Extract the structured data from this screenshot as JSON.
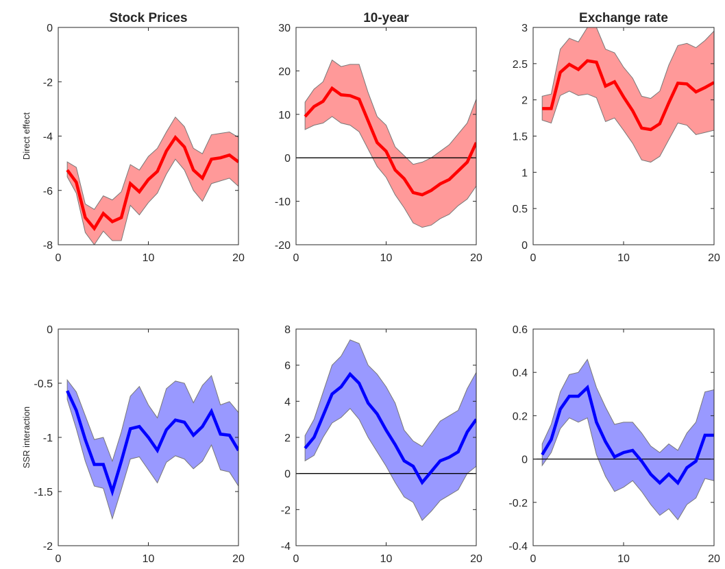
{
  "chart_data": [
    {
      "type": "line",
      "panel": "stock-direct",
      "title": "Stock Prices",
      "ylabel": "Direct effect",
      "xlabel": "",
      "xlim": [
        0,
        20
      ],
      "ylim": [
        -8,
        0
      ],
      "xticks": [
        0,
        10,
        20
      ],
      "yticks": [
        -8,
        -6,
        -4,
        -2,
        0
      ],
      "zero_line": false,
      "line_color": "#ff0000",
      "band_color": "#ff9999",
      "x": [
        1,
        2,
        3,
        4,
        5,
        6,
        7,
        8,
        9,
        10,
        11,
        12,
        13,
        14,
        15,
        16,
        17,
        18,
        19,
        20
      ],
      "median": [
        -5.25,
        -5.7,
        -7.0,
        -7.4,
        -6.85,
        -7.15,
        -7.0,
        -5.75,
        -6.05,
        -5.6,
        -5.3,
        -4.55,
        -4.05,
        -4.4,
        -5.25,
        -5.55,
        -4.85,
        -4.8,
        -4.7,
        -4.95
      ],
      "upper": [
        -4.95,
        -5.15,
        -6.5,
        -6.7,
        -6.2,
        -6.35,
        -6.05,
        -5.05,
        -5.25,
        -4.75,
        -4.45,
        -3.85,
        -3.3,
        -3.65,
        -4.45,
        -4.65,
        -3.95,
        -3.9,
        -3.85,
        -4.05
      ],
      "lower": [
        -5.5,
        -6.1,
        -7.55,
        -8.0,
        -7.5,
        -7.85,
        -7.85,
        -6.55,
        -6.9,
        -6.45,
        -6.1,
        -5.4,
        -4.85,
        -5.25,
        -6.0,
        -6.4,
        -5.75,
        -5.65,
        -5.55,
        -5.85
      ]
    },
    {
      "type": "line",
      "panel": "10y-direct",
      "title": "10-year",
      "ylabel": "",
      "xlabel": "",
      "xlim": [
        0,
        20
      ],
      "ylim": [
        -20,
        30
      ],
      "xticks": [
        0,
        10,
        20
      ],
      "yticks": [
        -20,
        -10,
        0,
        10,
        20,
        30
      ],
      "zero_line": true,
      "line_color": "#ff0000",
      "band_color": "#ff9999",
      "x": [
        1,
        2,
        3,
        4,
        5,
        6,
        7,
        8,
        9,
        10,
        11,
        12,
        13,
        14,
        15,
        16,
        17,
        18,
        19,
        20
      ],
      "median": [
        9.5,
        11.8,
        13.0,
        16.0,
        14.5,
        14.3,
        13.5,
        8.5,
        3.5,
        1.5,
        -2.8,
        -4.8,
        -8.0,
        -8.5,
        -7.5,
        -6.0,
        -5.0,
        -3.0,
        -1.0,
        3.5
      ],
      "upper": [
        12.8,
        15.8,
        17.5,
        22.5,
        21.0,
        21.5,
        21.5,
        15.0,
        9.5,
        7.5,
        2.5,
        0.5,
        -1.5,
        -1.0,
        0.0,
        1.5,
        3.0,
        5.5,
        8.0,
        13.5
      ],
      "lower": [
        6.5,
        7.5,
        8.0,
        9.5,
        8.0,
        7.5,
        6.0,
        2.0,
        -2.0,
        -4.5,
        -8.5,
        -11.5,
        -15.0,
        -16.0,
        -15.5,
        -14.0,
        -13.0,
        -11.0,
        -9.5,
        -6.5
      ]
    },
    {
      "type": "line",
      "panel": "fx-direct",
      "title": "Exchange rate",
      "ylabel": "",
      "xlabel": "",
      "xlim": [
        0,
        20
      ],
      "ylim": [
        0,
        3
      ],
      "xticks": [
        0,
        10,
        20
      ],
      "yticks": [
        0,
        0.5,
        1,
        1.5,
        2,
        2.5,
        3
      ],
      "zero_line": false,
      "line_color": "#ff0000",
      "band_color": "#ff9999",
      "x": [
        1,
        2,
        3,
        4,
        5,
        6,
        7,
        8,
        9,
        10,
        11,
        12,
        13,
        14,
        15,
        16,
        17,
        18,
        19,
        20
      ],
      "median": [
        1.88,
        1.88,
        2.38,
        2.49,
        2.42,
        2.54,
        2.52,
        2.19,
        2.25,
        2.04,
        1.85,
        1.61,
        1.59,
        1.67,
        1.96,
        2.23,
        2.22,
        2.11,
        2.17,
        2.24
      ],
      "upper": [
        2.05,
        2.08,
        2.7,
        2.85,
        2.8,
        3.0,
        3.0,
        2.7,
        2.65,
        2.45,
        2.3,
        2.05,
        2.02,
        2.12,
        2.48,
        2.75,
        2.78,
        2.72,
        2.82,
        2.95
      ],
      "lower": [
        1.72,
        1.68,
        2.06,
        2.12,
        2.06,
        2.08,
        2.03,
        1.7,
        1.75,
        1.58,
        1.4,
        1.17,
        1.14,
        1.22,
        1.45,
        1.68,
        1.65,
        1.52,
        1.55,
        1.58
      ]
    },
    {
      "type": "line",
      "panel": "stock-ssr",
      "title": "",
      "ylabel": "SSR interaction",
      "xlabel": "",
      "xlim": [
        0,
        20
      ],
      "ylim": [
        -2,
        0
      ],
      "xticks": [
        0,
        10,
        20
      ],
      "yticks": [
        -2,
        -1.5,
        -1,
        -0.5,
        0
      ],
      "zero_line": false,
      "line_color": "#0000ff",
      "band_color": "#9999ff",
      "x": [
        1,
        2,
        3,
        4,
        5,
        6,
        7,
        8,
        9,
        10,
        11,
        12,
        13,
        14,
        15,
        16,
        17,
        18,
        19,
        20
      ],
      "median": [
        -0.57,
        -0.75,
        -1.02,
        -1.25,
        -1.25,
        -1.5,
        -1.22,
        -0.92,
        -0.9,
        -1.0,
        -1.12,
        -0.93,
        -0.84,
        -0.86,
        -0.98,
        -0.9,
        -0.76,
        -0.97,
        -0.98,
        -1.12
      ],
      "upper": [
        -0.47,
        -0.58,
        -0.8,
        -1.02,
        -1.0,
        -1.22,
        -0.95,
        -0.62,
        -0.53,
        -0.7,
        -0.82,
        -0.55,
        -0.48,
        -0.5,
        -0.68,
        -0.52,
        -0.43,
        -0.7,
        -0.67,
        -0.77
      ],
      "lower": [
        -0.65,
        -0.92,
        -1.22,
        -1.45,
        -1.47,
        -1.75,
        -1.48,
        -1.2,
        -1.18,
        -1.3,
        -1.42,
        -1.23,
        -1.17,
        -1.2,
        -1.29,
        -1.22,
        -1.07,
        -1.3,
        -1.32,
        -1.45
      ]
    },
    {
      "type": "line",
      "panel": "10y-ssr",
      "title": "",
      "ylabel": "",
      "xlabel": "",
      "xlim": [
        0,
        20
      ],
      "ylim": [
        -4,
        8
      ],
      "xticks": [
        0,
        10,
        20
      ],
      "yticks": [
        -4,
        -2,
        0,
        2,
        4,
        6,
        8
      ],
      "zero_line": true,
      "line_color": "#0000ff",
      "band_color": "#9999ff",
      "x": [
        1,
        2,
        3,
        4,
        5,
        6,
        7,
        8,
        9,
        10,
        11,
        12,
        13,
        14,
        15,
        16,
        17,
        18,
        19,
        20
      ],
      "median": [
        1.4,
        2.0,
        3.2,
        4.4,
        4.8,
        5.5,
        5.0,
        3.9,
        3.3,
        2.4,
        1.6,
        0.7,
        0.4,
        -0.5,
        0.1,
        0.7,
        0.9,
        1.2,
        2.3,
        3.0
      ],
      "upper": [
        2.1,
        3.0,
        4.5,
        6.0,
        6.5,
        7.4,
        7.2,
        6.0,
        5.5,
        4.8,
        3.9,
        2.4,
        1.8,
        1.5,
        2.2,
        2.9,
        3.2,
        3.5,
        4.7,
        5.6
      ],
      "lower": [
        0.7,
        1.0,
        2.0,
        2.8,
        3.1,
        3.6,
        3.0,
        2.0,
        1.2,
        0.4,
        -0.5,
        -1.3,
        -1.6,
        -2.6,
        -2.1,
        -1.5,
        -1.2,
        -0.9,
        0.0,
        0.4
      ]
    },
    {
      "type": "line",
      "panel": "fx-ssr",
      "title": "",
      "ylabel": "",
      "xlabel": "",
      "xlim": [
        0,
        20
      ],
      "ylim": [
        -0.4,
        0.6
      ],
      "xticks": [
        0,
        10,
        20
      ],
      "yticks": [
        -0.4,
        -0.2,
        0,
        0.2,
        0.4,
        0.6
      ],
      "zero_line": true,
      "line_color": "#0000ff",
      "band_color": "#9999ff",
      "x": [
        1,
        2,
        3,
        4,
        5,
        6,
        7,
        8,
        9,
        10,
        11,
        12,
        13,
        14,
        15,
        16,
        17,
        18,
        19,
        20
      ],
      "median": [
        0.02,
        0.09,
        0.23,
        0.29,
        0.29,
        0.33,
        0.17,
        0.08,
        0.01,
        0.03,
        0.04,
        -0.01,
        -0.07,
        -0.11,
        -0.07,
        -0.11,
        -0.04,
        -0.01,
        0.11,
        0.11
      ],
      "upper": [
        0.07,
        0.16,
        0.31,
        0.39,
        0.4,
        0.46,
        0.33,
        0.24,
        0.16,
        0.17,
        0.17,
        0.12,
        0.06,
        0.03,
        0.07,
        0.04,
        0.12,
        0.17,
        0.31,
        0.32
      ],
      "lower": [
        -0.03,
        0.03,
        0.14,
        0.19,
        0.17,
        0.19,
        0.02,
        -0.08,
        -0.15,
        -0.13,
        -0.1,
        -0.15,
        -0.21,
        -0.26,
        -0.23,
        -0.28,
        -0.21,
        -0.18,
        -0.09,
        -0.1
      ]
    }
  ]
}
